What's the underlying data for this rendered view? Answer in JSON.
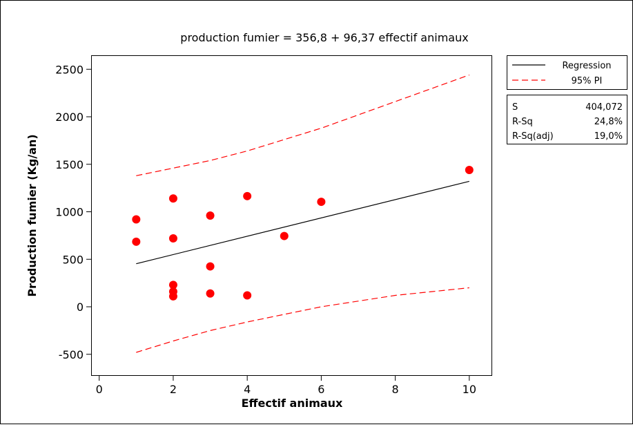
{
  "chart_data": {
    "type": "scatter",
    "title": "production fumier  =  356,8 + 96,37 effectif animaux",
    "xlabel": "Effectif animaux",
    "ylabel": "Production fumier (Kg/an)",
    "xlim": [
      -0.2,
      10.6
    ],
    "ylim": [
      -720,
      2640
    ],
    "x_ticks": [
      0,
      2,
      4,
      6,
      8,
      10
    ],
    "x_tick_labels": [
      "0",
      "2",
      "4",
      "6",
      "8",
      "10"
    ],
    "y_ticks": [
      -500,
      0,
      500,
      1000,
      1500,
      2000,
      2500
    ],
    "y_tick_labels": [
      "-500",
      "0",
      "500",
      "1000",
      "1500",
      "2000",
      "2500"
    ],
    "grid": false,
    "legend_position": "top-right-outside",
    "points": {
      "color": "#ff0000",
      "x": [
        1,
        1,
        2,
        2,
        2,
        2,
        2,
        3,
        3,
        3,
        4,
        4,
        5,
        6,
        10
      ],
      "y": [
        920,
        685,
        1140,
        720,
        230,
        160,
        110,
        960,
        425,
        140,
        1165,
        120,
        745,
        1105,
        1440
      ]
    },
    "series": [
      {
        "name": "Regression",
        "style": "solid",
        "color": "#000000",
        "x": [
          1,
          10
        ],
        "y": [
          453.17,
          1320.5
        ]
      },
      {
        "name": "95% PI",
        "style": "dashed",
        "color": "#ff0000",
        "x": [
          1,
          2,
          3,
          4,
          5,
          6,
          7,
          8,
          9,
          10
        ],
        "y": [
          1380,
          1460,
          1540,
          1640,
          1760,
          1880,
          2020,
          2160,
          2300,
          2440
        ]
      },
      {
        "style": "dashed",
        "color": "#ff0000",
        "x": [
          1,
          2,
          3,
          4,
          5,
          6,
          7,
          8,
          9,
          10
        ],
        "y": [
          -480,
          -360,
          -250,
          -160,
          -80,
          0,
          60,
          120,
          160,
          200
        ]
      }
    ],
    "stats": [
      {
        "label": "S",
        "value": "404,072"
      },
      {
        "label": "R-Sq",
        "value": "24,8%"
      },
      {
        "label": "R-Sq(adj)",
        "value": "19,0%"
      }
    ]
  }
}
